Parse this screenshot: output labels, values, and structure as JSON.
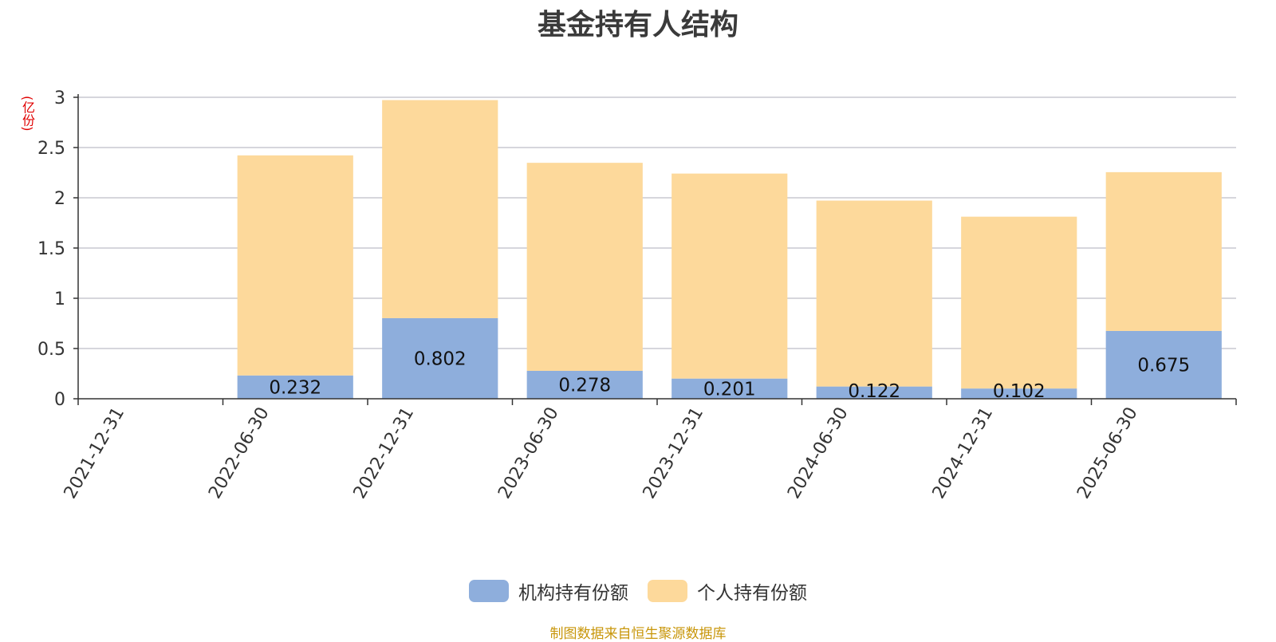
{
  "chart_data": {
    "type": "bar",
    "stacked": true,
    "title": "基金持有人结构",
    "unit": "(亿份)",
    "categories": [
      "2021-12-31",
      "2022-06-30",
      "2022-12-31",
      "2023-06-30",
      "2023-12-31",
      "2024-06-30",
      "2024-12-31",
      "2025-06-30"
    ],
    "series": [
      {
        "name": "机构持有份额",
        "color": "#8eaedc",
        "values": [
          0,
          0.232,
          0.802,
          0.278,
          0.201,
          0.122,
          0.102,
          0.675
        ]
      },
      {
        "name": "个人持有份额",
        "color": "#fdd99b",
        "values": [
          0,
          2.19,
          2.17,
          2.07,
          2.04,
          1.85,
          1.71,
          1.58
        ]
      }
    ],
    "data_labels": [
      "",
      "0.232",
      "0.802",
      "0.278",
      "0.201",
      "0.122",
      "0.102",
      "0.675"
    ],
    "y_ticks": [
      "0",
      "0.5",
      "1",
      "1.5",
      "2",
      "2.5",
      "3"
    ],
    "ylim": [
      0,
      3
    ],
    "grid": true,
    "legend_position": "bottom"
  },
  "source_note": "制图数据来自恒生聚源数据库"
}
